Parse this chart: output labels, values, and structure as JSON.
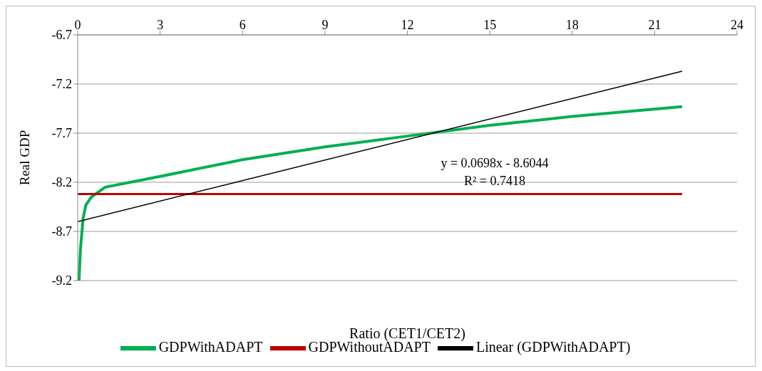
{
  "chart_data": {
    "type": "line",
    "xlabel": "Ratio (CET1/CET2)",
    "ylabel": "Real GDP",
    "xlim": [
      0,
      24
    ],
    "xticks": [
      0,
      3,
      6,
      9,
      12,
      15,
      18,
      21,
      24
    ],
    "ylim": [
      -9.2,
      -6.7
    ],
    "yticks": [
      -9.2,
      -8.7,
      -8.2,
      -7.7,
      -7.2,
      -6.7
    ],
    "grid": "y",
    "legend": "bottom",
    "marker": "none",
    "series": [
      {
        "name": "GDPWithADAPT",
        "color": "#00b050",
        "x": [
          0.05,
          0.1,
          0.2,
          0.3,
          0.5,
          1,
          3,
          6,
          9,
          12,
          15,
          18,
          22
        ],
        "values": [
          -9.2,
          -8.88,
          -8.56,
          -8.43,
          -8.35,
          -8.25,
          -8.14,
          -7.97,
          -7.84,
          -7.73,
          -7.62,
          -7.53,
          -7.43
        ]
      },
      {
        "name": "GDPWithoutADAPT",
        "color": "#c00000",
        "x": [
          0,
          22
        ],
        "values": [
          -8.32,
          -8.32
        ]
      },
      {
        "name": "Linear (GDPWithADAPT)",
        "color": "#000000",
        "x": [
          0,
          22
        ],
        "values": [
          -8.6,
          -7.07
        ]
      }
    ],
    "annotations": [
      "y = 0.0698x - 8.6044",
      "R² = 0.7418"
    ]
  }
}
